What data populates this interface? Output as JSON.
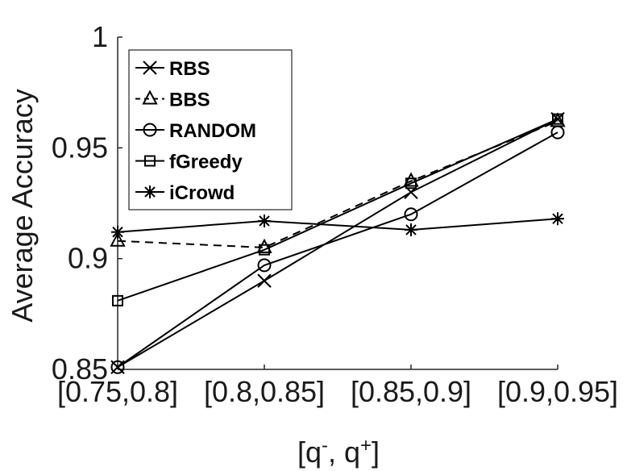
{
  "chart_data": {
    "type": "line",
    "xlabel": "[q-, q+]",
    "xlabel_parts": {
      "open": "[q",
      "minus_sup": "-",
      "mid": ", q",
      "plus_sup": "+",
      "close": "]"
    },
    "ylabel": "Average Accuracy",
    "categories": [
      "[0.75,0.8]",
      "[0.8,0.85]",
      "[0.85,0.9]",
      "[0.9,0.95]"
    ],
    "ylim": [
      0.85,
      1
    ],
    "yticks": [
      "0.85",
      "0.9",
      "0.95",
      "1"
    ],
    "yticks_values": [
      0.85,
      0.9,
      0.95,
      1
    ],
    "grid": false,
    "legend_position": "top-left",
    "series": [
      {
        "name": "RBS",
        "marker": "x",
        "dash": "solid",
        "color": "#000000",
        "values": [
          0.851,
          0.89,
          0.93,
          0.963
        ]
      },
      {
        "name": "BBS",
        "marker": "triangle",
        "dash": "dashed",
        "color": "#000000",
        "values": [
          0.908,
          0.905,
          0.935,
          0.962
        ]
      },
      {
        "name": "RANDOM",
        "marker": "circle",
        "dash": "solid",
        "color": "#000000",
        "values": [
          0.851,
          0.897,
          0.92,
          0.957
        ]
      },
      {
        "name": "fGreedy",
        "marker": "square",
        "dash": "solid",
        "color": "#000000",
        "values": [
          0.881,
          0.904,
          0.934,
          0.963
        ]
      },
      {
        "name": "iCrowd",
        "marker": "asterisk",
        "dash": "solid",
        "color": "#000000",
        "values": [
          0.912,
          0.917,
          0.913,
          0.918
        ]
      }
    ]
  }
}
